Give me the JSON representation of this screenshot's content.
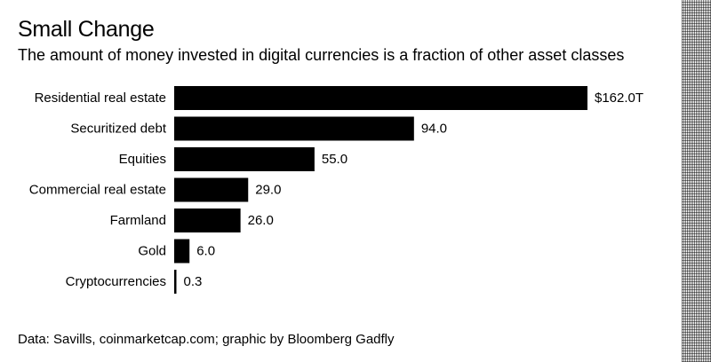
{
  "title": "Small Change",
  "subtitle": "The amount of money invested in digital currencies is a fraction of other asset classes",
  "source": "Data: Savills, coinmarketcap.com; graphic by Bloomberg Gadfly",
  "colors": {
    "bar": "#000000",
    "text": "#000000",
    "background": "#ffffff"
  },
  "chart_data": {
    "type": "bar",
    "orientation": "horizontal",
    "title": "Small Change",
    "subtitle": "The amount of money invested in digital currencies is a fraction of other asset classes",
    "xlabel": "",
    "ylabel": "",
    "xlim": [
      0,
      162
    ],
    "grid": false,
    "legend": "none",
    "categories": [
      "Residential real estate",
      "Securitized debt",
      "Equities",
      "Commercial real estate",
      "Farmland",
      "Gold",
      "Cryptocurrencies"
    ],
    "values": [
      162.0,
      94.0,
      55.0,
      29.0,
      26.0,
      6.0,
      0.3
    ],
    "value_labels": [
      "$162.0T",
      "94.0",
      "55.0",
      "29.0",
      "26.0",
      "6.0",
      "0.3"
    ]
  }
}
